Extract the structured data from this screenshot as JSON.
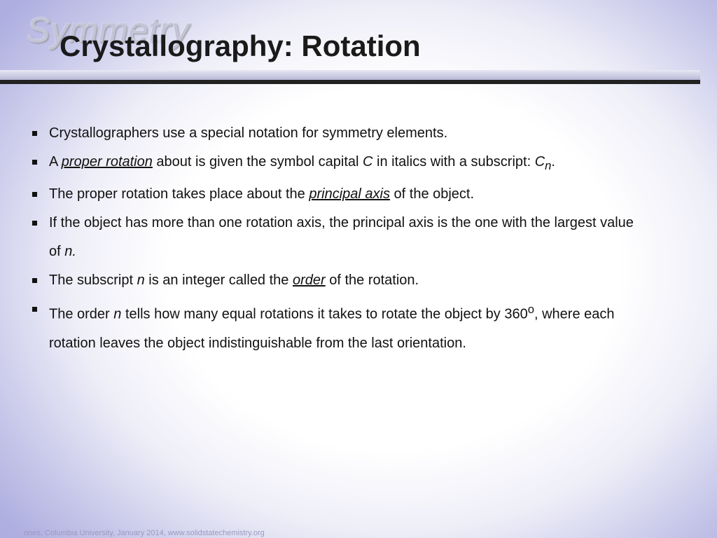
{
  "header": {
    "logo": "Symmetry",
    "title": "Crystallography: Rotation"
  },
  "bullets": [
    [
      "Crystallographers use a special notation for symmetry elements."
    ],
    [
      "A ",
      "proper rotation",
      " about is given the symbol capital ",
      "C",
      " in italics with a subscript: ",
      "C",
      "n",
      "."
    ],
    [
      "The proper rotation takes place about the ",
      "principal axis",
      " of the object."
    ],
    [
      "If the object has more than one rotation axis, the principal axis is the one with the largest value of ",
      "n."
    ],
    [
      "The subscript ",
      "n",
      " is an integer called the ",
      "order",
      " of the rotation."
    ],
    [
      "The order ",
      "n",
      " tells how many equal rotations it takes to rotate the object by 360",
      "o",
      ", where each rotation leaves the object indistinguishable from the last orientation."
    ]
  ],
  "footer": "ones, Columbia University, January 2014, www.solidstatechemistry.org"
}
